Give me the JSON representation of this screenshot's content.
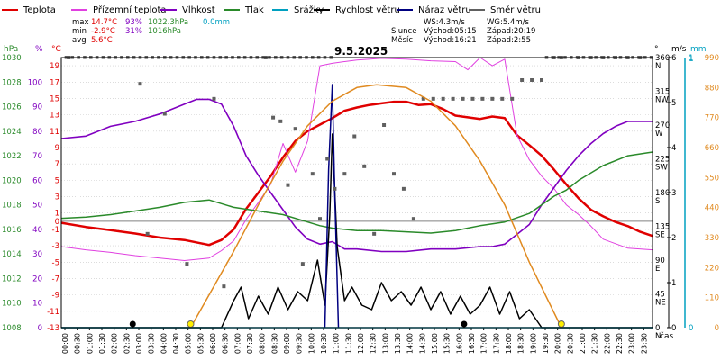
{
  "legend": [
    {
      "label": "Teplota",
      "color": "#e00000"
    },
    {
      "label": "Přízemní teplota",
      "color": "#e040e0"
    },
    {
      "label": "Vlhkost",
      "color": "#8000c0"
    },
    {
      "label": "Tlak",
      "color": "#2a8a2a"
    },
    {
      "label": "Srážky",
      "color": "#00a0c0"
    },
    {
      "label": "Rychlost větru",
      "color": "#000000"
    },
    {
      "label": "Náraz větru",
      "color": "#000080"
    },
    {
      "label": "Směr větru",
      "color": "#606060"
    }
  ],
  "stats": {
    "max": {
      "label": "max",
      "temp": "14.7°C",
      "hum": "93%",
      "press": "1022.3hPa",
      "rain": "0.0mm"
    },
    "min": {
      "label": "min",
      "temp": "-2.9°C",
      "hum": "31%",
      "press": "1016hPa"
    },
    "avg": {
      "label": "avg",
      "temp": "5.6°C"
    }
  },
  "wind_info": {
    "ws": "WS:4.3m/s",
    "wg": "WG:5.4m/s"
  },
  "sun_info": {
    "label": "Slunce",
    "rise": "Východ:05:15",
    "set": "Západ:20:19"
  },
  "moon_info": {
    "label": "Měsíc",
    "rise": "Východ:16:21",
    "set": "Západ:2:55"
  },
  "date": "9.5.2025",
  "axis_headers": {
    "hpa": "hPa",
    "pct": "%",
    "degc": "°C",
    "deg": "°",
    "ms": "m/s",
    "mm": "mm",
    "mm_max": "1",
    "time_label": "čas"
  },
  "colors": {
    "temp": "#e00000",
    "ground": "#e040e0",
    "hum": "#8000c0",
    "press": "#2a8a2a",
    "rain": "#00a0c0",
    "wind": "#000000",
    "gust": "#000080",
    "dir": "#606060",
    "sun": "#e08a20",
    "grid": "#c8c8c8",
    "frame": "#000000"
  },
  "chart_data": {
    "type": "line",
    "title": "9.5.2025",
    "x_unit": "hours",
    "xlim": [
      0,
      24
    ],
    "axes": {
      "pressure": {
        "label": "hPa",
        "range": [
          1008,
          1030
        ],
        "ticks": [
          1008,
          1010,
          1012,
          1014,
          1016,
          1018,
          1020,
          1022,
          1024,
          1026,
          1028,
          1030
        ]
      },
      "humidity": {
        "label": "%",
        "range": [
          0,
          110
        ],
        "ticks": [
          0,
          10,
          20,
          30,
          40,
          50,
          60,
          70,
          80,
          90,
          100
        ]
      },
      "temperature": {
        "label": "°C",
        "range": [
          -13,
          20
        ],
        "ticks": [
          -13,
          -11,
          -9,
          -7,
          -5,
          -3,
          -1,
          1,
          3,
          5,
          7,
          9,
          11,
          13,
          15,
          17,
          19
        ],
        "extra_ticks": [
          0
        ]
      },
      "direction": {
        "label": "°",
        "range": [
          0,
          360
        ],
        "ticks": [
          {
            "value": 0,
            "text": "0"
          },
          {
            "value": 45,
            "text": "45"
          },
          {
            "value": 90,
            "text": "90"
          },
          {
            "value": 135,
            "text": "135"
          },
          {
            "value": 180,
            "text": "180"
          },
          {
            "value": 225,
            "text": "225"
          },
          {
            "value": 270,
            "text": "270"
          },
          {
            "value": 315,
            "text": "315"
          },
          {
            "value": 360,
            "text": "360"
          }
        ],
        "compass": [
          {
            "value": 0,
            "text": "N"
          },
          {
            "value": 45,
            "text": "NE"
          },
          {
            "value": 90,
            "text": "E"
          },
          {
            "value": 135,
            "text": "SE"
          },
          {
            "value": 180,
            "text": "S"
          },
          {
            "value": 225,
            "text": "SW"
          },
          {
            "value": 270,
            "text": "W"
          },
          {
            "value": 315,
            "text": "NW"
          },
          {
            "value": 360,
            "text": "N"
          }
        ]
      },
      "wind": {
        "label": "m/s",
        "range": [
          0,
          6
        ],
        "ticks": [
          0,
          1,
          2,
          3,
          4,
          5,
          6
        ]
      },
      "rain": {
        "label": "mm",
        "range": [
          0,
          1
        ],
        "ticks": [
          0,
          1
        ]
      },
      "solar": {
        "range": [
          0,
          990
        ],
        "ticks": [
          0,
          110,
          220,
          330,
          440,
          550,
          660,
          770,
          880,
          990
        ]
      }
    },
    "x_ticks": [
      "00:00",
      "00:30",
      "01:00",
      "01:30",
      "02:00",
      "02:30",
      "03:00",
      "03:30",
      "04:00",
      "04:30",
      "05:00",
      "05:30",
      "06:00",
      "06:30",
      "07:00",
      "07:30",
      "08:00",
      "08:30",
      "09:00",
      "09:30",
      "10:00",
      "10:30",
      "11:00",
      "11:30",
      "12:00",
      "12:30",
      "13:00",
      "13:30",
      "14:00",
      "14:30",
      "15:00",
      "15:30",
      "16:00",
      "16:30",
      "17:00",
      "17:30",
      "18:00",
      "18:30",
      "19:00",
      "19:30",
      "20:00",
      "20:30",
      "21:00",
      "21:30",
      "22:00",
      "22:30",
      "23:00",
      "23:30"
    ],
    "series": [
      {
        "name": "Teplota",
        "axis": "temperature",
        "x": [
          0,
          1,
          2,
          3,
          4,
          5,
          6,
          6.5,
          7,
          7.5,
          8,
          8.5,
          9,
          9.5,
          10,
          10.5,
          11,
          11.5,
          12,
          12.5,
          13,
          13.5,
          14,
          14.5,
          15,
          15.5,
          16,
          16.5,
          17,
          17.5,
          18,
          18.5,
          19,
          19.5,
          20,
          20.5,
          21,
          21.5,
          22,
          22.5,
          23,
          23.5,
          24
        ],
        "y": [
          -0.2,
          -0.7,
          -1.1,
          -1.5,
          -2.0,
          -2.3,
          -2.9,
          -2.3,
          -1.0,
          1.5,
          3.5,
          5.5,
          7.8,
          9.8,
          11.0,
          11.8,
          12.6,
          13.5,
          13.9,
          14.2,
          14.4,
          14.6,
          14.6,
          14.2,
          14.3,
          13.7,
          12.9,
          12.7,
          12.5,
          12.8,
          12.6,
          10.5,
          9.3,
          8.0,
          6.3,
          4.5,
          2.8,
          1.4,
          0.6,
          -0.1,
          -0.6,
          -1.3,
          -1.8
        ]
      },
      {
        "name": "Přízemní teplota",
        "axis": "temperature",
        "x": [
          0,
          1,
          2,
          3,
          4,
          5,
          6,
          6.5,
          7,
          7.5,
          8,
          8.5,
          9,
          9.5,
          10,
          10.5,
          11,
          11.5,
          12,
          13,
          14,
          15,
          16,
          16.5,
          17,
          17.5,
          18,
          18.5,
          19,
          19.5,
          20,
          20.5,
          21,
          21.5,
          22,
          23,
          24
        ],
        "y": [
          -3.1,
          -3.5,
          -3.8,
          -4.2,
          -4.5,
          -4.8,
          -4.5,
          -3.6,
          -2.4,
          0.2,
          2.3,
          4.5,
          9.5,
          6.0,
          9.8,
          19.0,
          19.3,
          19.5,
          19.7,
          19.9,
          19.8,
          19.6,
          19.5,
          18.5,
          20.0,
          19.0,
          19.8,
          10.5,
          7.5,
          5.5,
          4.0,
          2.0,
          0.8,
          -0.6,
          -2.2,
          -3.3,
          -3.5
        ]
      },
      {
        "name": "Vlhkost",
        "axis": "humidity",
        "x": [
          0,
          1,
          2,
          3,
          4,
          5,
          5.5,
          6,
          6.5,
          7,
          7.5,
          8,
          8.5,
          9,
          9.5,
          10,
          10.5,
          11,
          11.5,
          12,
          13,
          14,
          15,
          16,
          17,
          17.5,
          18,
          18.5,
          19,
          19.5,
          20,
          20.5,
          21,
          21.5,
          22,
          22.5,
          23,
          23.5,
          24
        ],
        "y": [
          77,
          78,
          82,
          84,
          87,
          91,
          93,
          93,
          91,
          82,
          70,
          62,
          55,
          48,
          41,
          36,
          34,
          35,
          32,
          32,
          31,
          31,
          32,
          32,
          33,
          33,
          34,
          38,
          42,
          50,
          57,
          64,
          70,
          75,
          79,
          82,
          84,
          84,
          84
        ]
      },
      {
        "name": "Tlak",
        "axis": "pressure",
        "x": [
          0,
          1,
          2,
          3,
          4,
          5,
          6,
          6.5,
          7,
          8,
          9,
          10,
          10.5,
          11,
          12,
          13,
          14,
          15,
          16,
          16.5,
          17,
          18,
          19,
          20,
          20.5,
          21,
          22,
          23,
          24
        ],
        "y": [
          1016.9,
          1017.0,
          1017.2,
          1017.5,
          1017.8,
          1018.2,
          1018.4,
          1018.1,
          1017.8,
          1017.5,
          1017.2,
          1016.6,
          1016.3,
          1016.1,
          1015.9,
          1015.9,
          1015.8,
          1015.7,
          1015.9,
          1016.1,
          1016.3,
          1016.6,
          1017.3,
          1018.7,
          1019.2,
          1020.0,
          1021.2,
          1022.0,
          1022.3
        ]
      },
      {
        "name": "Rychlost větru",
        "axis": "wind",
        "x": [
          0,
          6.5,
          7,
          7.3,
          7.6,
          8,
          8.4,
          8.8,
          9.2,
          9.6,
          10,
          10.4,
          10.7,
          10.9,
          11.0,
          11.2,
          11.5,
          11.8,
          12.2,
          12.6,
          13,
          13.4,
          13.8,
          14.2,
          14.6,
          15,
          15.4,
          15.8,
          16.2,
          16.6,
          17,
          17.4,
          17.8,
          18.2,
          18.6,
          19,
          19.5,
          20,
          24
        ],
        "y": [
          0,
          0,
          0.6,
          0.9,
          0.2,
          0.7,
          0.3,
          0.9,
          0.4,
          0.8,
          0.6,
          1.5,
          0.5,
          2.5,
          4.3,
          1.8,
          0.6,
          0.9,
          0.5,
          0.4,
          1.0,
          0.6,
          0.8,
          0.5,
          0.9,
          0.4,
          0.8,
          0.3,
          0.7,
          0.3,
          0.5,
          0.9,
          0.3,
          0.8,
          0.2,
          0.4,
          0,
          0,
          0
        ]
      },
      {
        "name": "Náraz větru",
        "axis": "wind",
        "x": [
          10.7,
          10.85,
          11.0,
          11.1,
          11.25
        ],
        "y": [
          0,
          3.5,
          5.4,
          3.0,
          0
        ]
      },
      {
        "name": "Směr větru",
        "axis": "direction",
        "kind": "scatter",
        "x": [
          0.3,
          3.2,
          3.5,
          4.2,
          5.1,
          6.2,
          6.6,
          8.3,
          8.6,
          8.9,
          9.2,
          9.5,
          9.8,
          10.2,
          10.5,
          10.8,
          11.1,
          11.5,
          11.9,
          12.3,
          12.7,
          13.1,
          13.5,
          13.9,
          14.3,
          14.7,
          15.1,
          15.5,
          15.9,
          16.3,
          16.7,
          17.1,
          17.5,
          17.9,
          18.3,
          18.7,
          19.1,
          19.5,
          20.0,
          20.3,
          21.0,
          21.5,
          22.0,
          22.5,
          23.0,
          23.5
        ],
        "y": [
          360,
          325,
          125,
          285,
          85,
          305,
          55,
          360,
          280,
          275,
          190,
          265,
          85,
          205,
          145,
          225,
          185,
          205,
          255,
          215,
          125,
          270,
          205,
          185,
          145,
          305,
          305,
          305,
          305,
          305,
          305,
          305,
          305,
          305,
          305,
          330,
          330,
          330,
          360,
          360,
          360,
          360,
          360,
          360,
          360,
          360
        ]
      },
      {
        "name": "Srážky",
        "axis": "rain",
        "x": [
          0,
          24
        ],
        "y": [
          0,
          0
        ]
      },
      {
        "name": "Sluneční svit",
        "axis": "solar",
        "x": [
          5.25,
          6,
          7,
          8,
          9,
          10,
          11,
          12,
          12.8,
          14,
          15,
          16,
          17,
          18,
          19,
          20.3
        ],
        "y": [
          0,
          120,
          280,
          450,
          610,
          740,
          830,
          880,
          890,
          880,
          830,
          740,
          610,
          450,
          240,
          0
        ]
      }
    ],
    "markers": [
      {
        "type": "sunrise",
        "x": 5.25
      },
      {
        "type": "sunset",
        "x": 20.3
      },
      {
        "type": "moonset",
        "x": 2.9
      },
      {
        "type": "moonrise",
        "x": 16.35
      }
    ]
  }
}
